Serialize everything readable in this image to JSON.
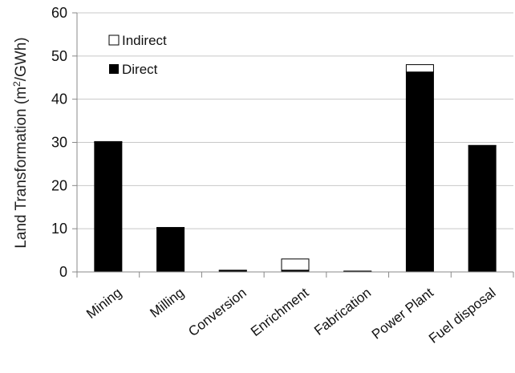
{
  "chart_data": {
    "type": "bar",
    "stacked": true,
    "categories": [
      "Mining",
      "Milling",
      "Conversion",
      "Enrichment",
      "Fabrication",
      "Power Plant",
      "Fuel disposal"
    ],
    "series": [
      {
        "name": "Direct",
        "color": "#000000",
        "values": [
          30,
          10.2,
          0.3,
          0.4,
          0.1,
          46.3,
          29.2
        ]
      },
      {
        "name": "Indirect",
        "color": "#ffffff",
        "values": [
          0.2,
          0.1,
          0.1,
          2.6,
          0.1,
          1.7,
          0.1
        ]
      }
    ],
    "ylabel_parts": [
      "Land Transformation (m",
      "2",
      "/GWh)"
    ],
    "ylim": [
      0,
      60
    ],
    "yticks": [
      0,
      10,
      20,
      30,
      40,
      50,
      60
    ],
    "grid": true,
    "legend": "top-left"
  }
}
